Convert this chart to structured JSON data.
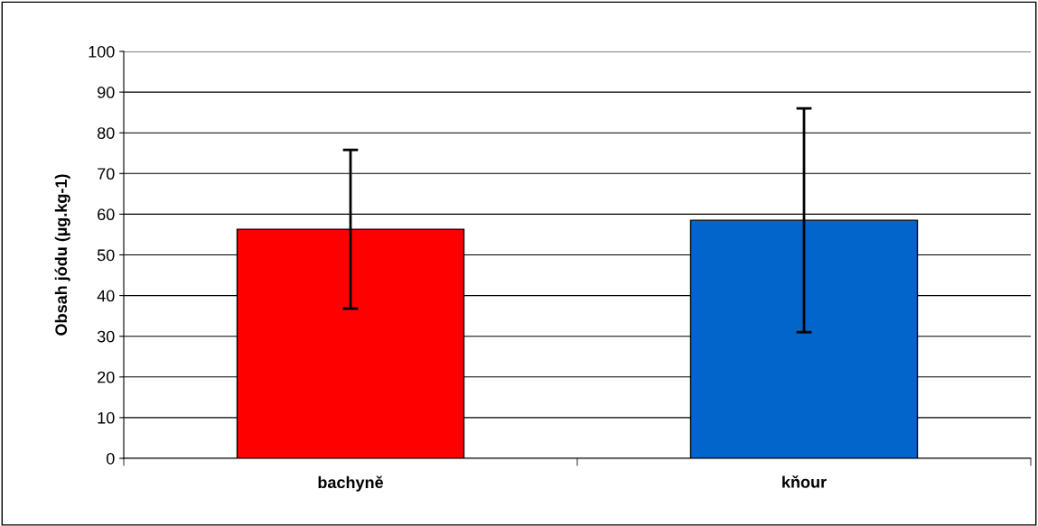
{
  "chart_data": {
    "type": "bar",
    "ylabel": "Obsah jódu (µg.kg-1)",
    "categories": [
      "bachyně",
      "kňour"
    ],
    "values": [
      56.3,
      58.5
    ],
    "colors": [
      "#ff0000",
      "#0066cc"
    ],
    "errors": [
      19.5,
      27.5
    ],
    "ylim": [
      0,
      100
    ],
    "yticks": [
      0,
      10,
      20,
      30,
      40,
      50,
      60,
      70,
      80,
      90,
      100
    ],
    "grid": "y"
  }
}
